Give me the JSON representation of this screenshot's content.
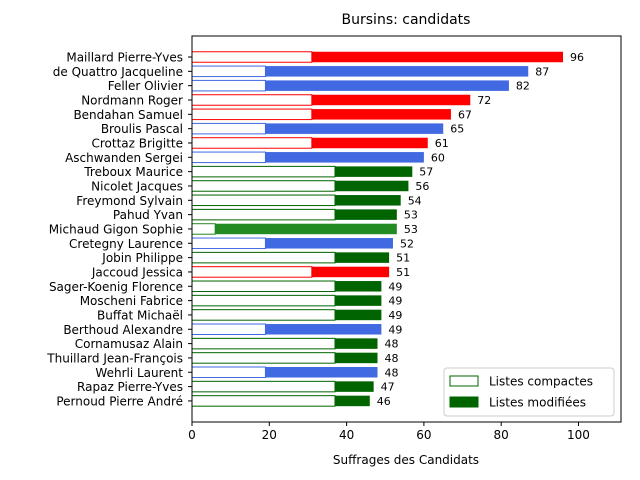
{
  "chart_data": {
    "type": "bar",
    "orientation": "horizontal",
    "title": "Bursins: candidats",
    "xlabel": "Suffrages des Candidats",
    "ylabel": "",
    "xlim": [
      0,
      111
    ],
    "xticks": [
      0,
      20,
      40,
      60,
      80,
      100
    ],
    "grid": false,
    "legend_position": "lower-right",
    "legend": [
      {
        "label": "Listes compactes",
        "style": "outline",
        "color": "#006400"
      },
      {
        "label": "Listes modifiées",
        "style": "filled",
        "color": "#006400"
      }
    ],
    "series_names": [
      "Listes compactes",
      "Listes modifiées"
    ],
    "candidates": [
      {
        "name": "Maillard Pierre-Yves",
        "compact": 31,
        "total": 96,
        "color": "#ff0000"
      },
      {
        "name": "de Quattro Jacqueline",
        "compact": 19,
        "total": 87,
        "color": "#4169e1"
      },
      {
        "name": "Feller Olivier",
        "compact": 19,
        "total": 82,
        "color": "#4169e1"
      },
      {
        "name": "Nordmann Roger",
        "compact": 31,
        "total": 72,
        "color": "#ff0000"
      },
      {
        "name": "Bendahan Samuel",
        "compact": 31,
        "total": 67,
        "color": "#ff0000"
      },
      {
        "name": "Broulis Pascal",
        "compact": 19,
        "total": 65,
        "color": "#4169e1"
      },
      {
        "name": "Crottaz Brigitte",
        "compact": 31,
        "total": 61,
        "color": "#ff0000"
      },
      {
        "name": "Aschwanden Sergei",
        "compact": 19,
        "total": 60,
        "color": "#4169e1"
      },
      {
        "name": "Treboux Maurice",
        "compact": 37,
        "total": 57,
        "color": "#006400"
      },
      {
        "name": "Nicolet Jacques",
        "compact": 37,
        "total": 56,
        "color": "#006400"
      },
      {
        "name": "Freymond Sylvain",
        "compact": 37,
        "total": 54,
        "color": "#006400"
      },
      {
        "name": "Pahud Yvan",
        "compact": 37,
        "total": 53,
        "color": "#006400"
      },
      {
        "name": "Michaud Gigon Sophie",
        "compact": 6,
        "total": 53,
        "color": "#228b22"
      },
      {
        "name": "Cretegny Laurence",
        "compact": 19,
        "total": 52,
        "color": "#4169e1"
      },
      {
        "name": "Jobin Philippe",
        "compact": 37,
        "total": 51,
        "color": "#006400"
      },
      {
        "name": "Jaccoud Jessica",
        "compact": 31,
        "total": 51,
        "color": "#ff0000"
      },
      {
        "name": "Sager-Koenig Florence",
        "compact": 37,
        "total": 49,
        "color": "#006400"
      },
      {
        "name": "Moscheni Fabrice",
        "compact": 37,
        "total": 49,
        "color": "#006400"
      },
      {
        "name": "Buffat Michaël",
        "compact": 37,
        "total": 49,
        "color": "#006400"
      },
      {
        "name": "Berthoud Alexandre",
        "compact": 19,
        "total": 49,
        "color": "#4169e1"
      },
      {
        "name": "Cornamusaz Alain",
        "compact": 37,
        "total": 48,
        "color": "#006400"
      },
      {
        "name": "Thuillard Jean-François",
        "compact": 37,
        "total": 48,
        "color": "#006400"
      },
      {
        "name": "Wehrli Laurent",
        "compact": 19,
        "total": 48,
        "color": "#4169e1"
      },
      {
        "name": "Rapaz Pierre-Yves",
        "compact": 37,
        "total": 47,
        "color": "#006400"
      },
      {
        "name": "Pernoud Pierre André",
        "compact": 37,
        "total": 46,
        "color": "#006400"
      }
    ]
  }
}
